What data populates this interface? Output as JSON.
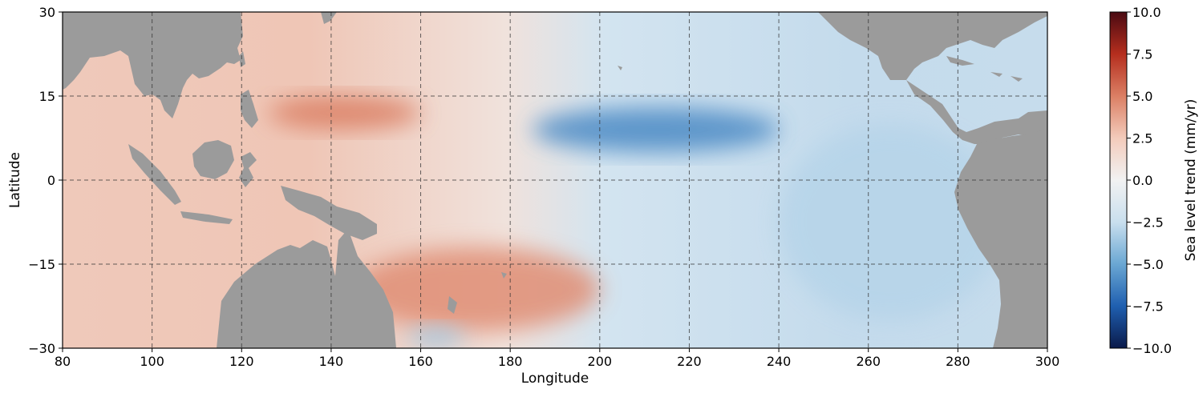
{
  "chart_data": {
    "type": "heatmap",
    "title": "",
    "xlabel": "Longitude",
    "ylabel": "Latitude",
    "xlim": [
      80,
      300
    ],
    "ylim": [
      -30,
      30
    ],
    "x_ticks": [
      80,
      100,
      120,
      140,
      160,
      180,
      200,
      220,
      240,
      260,
      280,
      300
    ],
    "y_ticks": [
      30,
      15,
      0,
      -15,
      -30
    ],
    "x_tick_labels": [
      "80",
      "100",
      "120",
      "140",
      "160",
      "180",
      "200",
      "220",
      "240",
      "260",
      "280",
      "300"
    ],
    "y_tick_labels": [
      "30",
      "15",
      "0",
      "−15",
      "−30"
    ],
    "grid": true,
    "colorbar": {
      "label": "Sea level trend (mm/yr)",
      "range": [
        -10,
        10
      ],
      "ticks": [
        10,
        7.5,
        5,
        2.5,
        0,
        -2.5,
        -5,
        -7.5,
        -10
      ],
      "tick_labels": [
        "10.0",
        "7.5",
        "5.0",
        "2.5",
        "0.0",
        "−2.5",
        "−5.0",
        "−7.5",
        "−10.0"
      ],
      "colormap": "RdBu_r",
      "color_stops": [
        "#0a1a4a",
        "#1f5fb0",
        "#6aa7d3",
        "#c9dfee",
        "#f2f2f2",
        "#f3cbbb",
        "#db7f64",
        "#b52e1e",
        "#4a0a12"
      ]
    },
    "land_color": "#9b9b9b",
    "features": [
      {
        "name": "western-north-pacific-high",
        "lon": [
          126,
          160
        ],
        "lat": [
          9,
          15
        ],
        "value": 5
      },
      {
        "name": "southwest-pacific-high",
        "lon": [
          145,
          200
        ],
        "lat": [
          -27,
          -12
        ],
        "value": 4.5
      },
      {
        "name": "central-north-pacific-low",
        "lon": [
          185,
          240
        ],
        "lat": [
          5,
          13
        ],
        "value": -6
      },
      {
        "name": "eastern-pacific-low",
        "lon": [
          240,
          290
        ],
        "lat": [
          -25,
          10
        ],
        "value": -3
      },
      {
        "name": "southern-ocean-low",
        "lon": [
          157,
          170
        ],
        "lat": [
          -30,
          -26
        ],
        "value": -3.5
      }
    ]
  }
}
